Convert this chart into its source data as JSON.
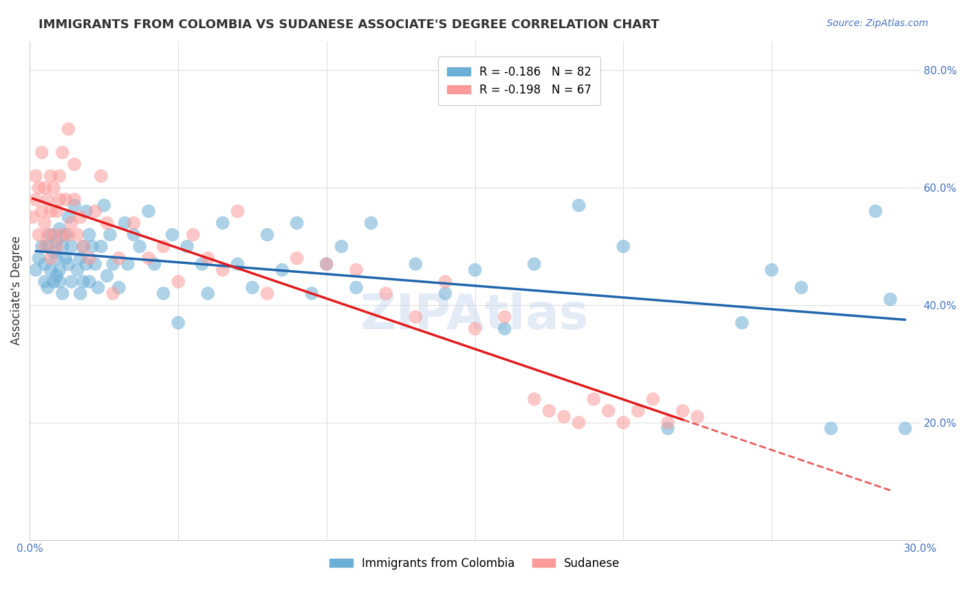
{
  "title": "IMMIGRANTS FROM COLOMBIA VS SUDANESE ASSOCIATE'S DEGREE CORRELATION CHART",
  "source": "Source: ZipAtlas.com",
  "ylabel": "Associate's Degree",
  "xlabel": "",
  "watermark": "ZIPAtlas",
  "xmin": 0.0,
  "xmax": 0.3,
  "ymin": 0.0,
  "ymax": 0.85,
  "yticks": [
    0.2,
    0.4,
    0.6,
    0.8
  ],
  "xticks": [
    0.0,
    0.05,
    0.1,
    0.15,
    0.2,
    0.25,
    0.3
  ],
  "xtick_labels": [
    "0.0%",
    "",
    "",
    "",
    "",
    "",
    "30.0%"
  ],
  "ytick_labels": [
    "20.0%",
    "40.0%",
    "60.0%",
    "80.0%"
  ],
  "colombia_R": -0.186,
  "colombia_N": 82,
  "sudanese_R": -0.198,
  "sudanese_N": 67,
  "colombia_color": "#6baed6",
  "sudanese_color": "#fb9a99",
  "colombia_line_color": "#2166ac",
  "sudanese_line_color": "#e31a1c",
  "background_color": "#ffffff",
  "grid_color": "#dddddd",
  "colombia_x": [
    0.002,
    0.003,
    0.004,
    0.005,
    0.005,
    0.006,
    0.006,
    0.007,
    0.007,
    0.008,
    0.008,
    0.009,
    0.009,
    0.009,
    0.01,
    0.01,
    0.01,
    0.011,
    0.011,
    0.012,
    0.012,
    0.013,
    0.013,
    0.014,
    0.014,
    0.015,
    0.016,
    0.017,
    0.017,
    0.018,
    0.018,
    0.019,
    0.019,
    0.02,
    0.02,
    0.021,
    0.022,
    0.023,
    0.024,
    0.025,
    0.026,
    0.027,
    0.028,
    0.03,
    0.032,
    0.033,
    0.035,
    0.037,
    0.04,
    0.042,
    0.045,
    0.048,
    0.05,
    0.053,
    0.058,
    0.06,
    0.065,
    0.07,
    0.075,
    0.08,
    0.085,
    0.09,
    0.095,
    0.1,
    0.105,
    0.11,
    0.115,
    0.13,
    0.14,
    0.15,
    0.16,
    0.17,
    0.185,
    0.2,
    0.215,
    0.24,
    0.25,
    0.26,
    0.27,
    0.285,
    0.295,
    0.29
  ],
  "colombia_y": [
    0.46,
    0.48,
    0.5,
    0.44,
    0.47,
    0.43,
    0.5,
    0.52,
    0.46,
    0.49,
    0.44,
    0.51,
    0.45,
    0.48,
    0.53,
    0.46,
    0.44,
    0.5,
    0.42,
    0.48,
    0.52,
    0.47,
    0.55,
    0.44,
    0.5,
    0.57,
    0.46,
    0.42,
    0.48,
    0.44,
    0.5,
    0.56,
    0.47,
    0.44,
    0.52,
    0.5,
    0.47,
    0.43,
    0.5,
    0.57,
    0.45,
    0.52,
    0.47,
    0.43,
    0.54,
    0.47,
    0.52,
    0.5,
    0.56,
    0.47,
    0.42,
    0.52,
    0.37,
    0.5,
    0.47,
    0.42,
    0.54,
    0.47,
    0.43,
    0.52,
    0.46,
    0.54,
    0.42,
    0.47,
    0.5,
    0.43,
    0.54,
    0.47,
    0.42,
    0.46,
    0.36,
    0.47,
    0.57,
    0.5,
    0.19,
    0.37,
    0.46,
    0.43,
    0.19,
    0.56,
    0.19,
    0.41
  ],
  "sudanese_x": [
    0.001,
    0.002,
    0.002,
    0.003,
    0.003,
    0.004,
    0.004,
    0.005,
    0.005,
    0.005,
    0.006,
    0.006,
    0.007,
    0.007,
    0.007,
    0.008,
    0.008,
    0.009,
    0.009,
    0.01,
    0.01,
    0.011,
    0.011,
    0.012,
    0.013,
    0.013,
    0.014,
    0.015,
    0.015,
    0.016,
    0.017,
    0.018,
    0.02,
    0.022,
    0.024,
    0.026,
    0.028,
    0.03,
    0.035,
    0.04,
    0.045,
    0.05,
    0.055,
    0.06,
    0.065,
    0.07,
    0.08,
    0.09,
    0.1,
    0.11,
    0.12,
    0.13,
    0.14,
    0.15,
    0.16,
    0.17,
    0.175,
    0.18,
    0.185,
    0.19,
    0.195,
    0.2,
    0.205,
    0.21,
    0.215,
    0.22,
    0.225
  ],
  "sudanese_y": [
    0.55,
    0.62,
    0.58,
    0.6,
    0.52,
    0.56,
    0.66,
    0.6,
    0.54,
    0.5,
    0.58,
    0.52,
    0.56,
    0.62,
    0.48,
    0.52,
    0.6,
    0.56,
    0.5,
    0.58,
    0.62,
    0.52,
    0.66,
    0.58,
    0.52,
    0.7,
    0.54,
    0.64,
    0.58,
    0.52,
    0.55,
    0.5,
    0.48,
    0.56,
    0.62,
    0.54,
    0.42,
    0.48,
    0.54,
    0.48,
    0.5,
    0.44,
    0.52,
    0.48,
    0.46,
    0.56,
    0.42,
    0.48,
    0.47,
    0.46,
    0.42,
    0.38,
    0.44,
    0.36,
    0.38,
    0.24,
    0.22,
    0.21,
    0.2,
    0.24,
    0.22,
    0.2,
    0.22,
    0.24,
    0.2,
    0.22,
    0.21
  ]
}
